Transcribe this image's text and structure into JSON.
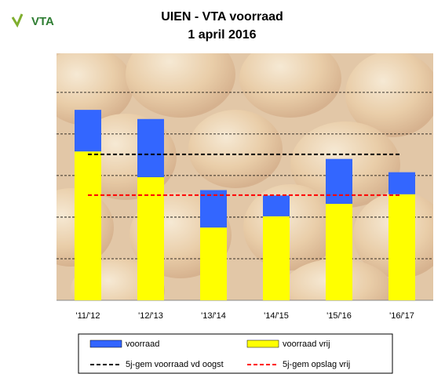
{
  "logo": "VTA",
  "chart_data": {
    "type": "bar",
    "stacked": true,
    "title": "UIEN - VTA voorraad",
    "subtitle": "1 april 2016",
    "categories": [
      "'11/'12",
      "'12/'13",
      "'13/'14",
      "'14/'15",
      "'15/'16",
      "'16/'17"
    ],
    "series": [
      {
        "name": "voorraad vrij",
        "color": "#ffff00",
        "values": [
          358,
          296,
          175,
          202,
          232,
          255
        ]
      },
      {
        "name": "voorraad",
        "color": "#3366ff",
        "values": [
          100,
          140,
          90,
          50,
          108,
          53
        ]
      }
    ],
    "reference_lines": [
      {
        "name": "5j-gem voorraad vd oogst",
        "color": "#000000",
        "value": 351
      },
      {
        "name": "5j-gem opslag vrij",
        "color": "#ff0000",
        "value": 253
      }
    ],
    "ylim": [
      0,
      594
    ],
    "yticks": [
      100,
      200,
      300,
      400,
      500
    ],
    "grid": true
  }
}
